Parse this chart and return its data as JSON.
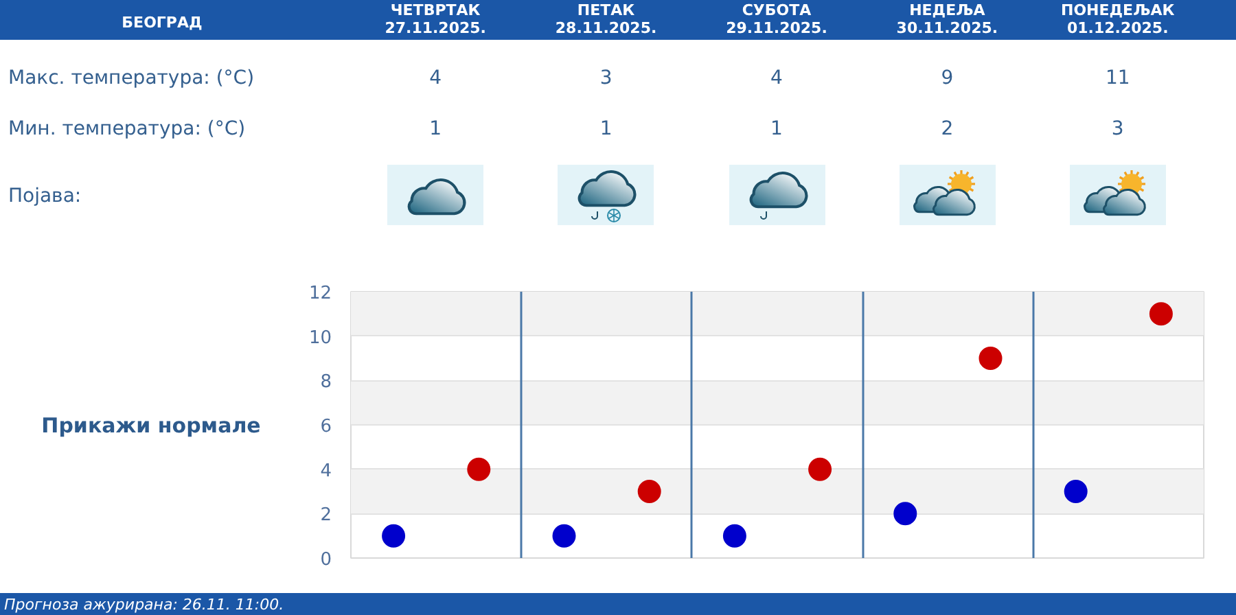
{
  "chart_data": {
    "type": "scatter",
    "title": "БЕОГРАД",
    "categories": [
      null,
      null,
      null,
      null,
      null
    ],
    "tick_labels": "y",
    "series": [
      {
        "color": "#cc0000",
        "values": [
          4,
          3,
          4,
          9,
          11
        ]
      },
      {
        "color": "#0000cc",
        "values": [
          1,
          1,
          1,
          2,
          3
        ]
      }
    ],
    "ylim": [
      0,
      12
    ],
    "yticks": [
      0,
      2,
      4,
      6,
      8,
      10,
      12
    ],
    "grid": true,
    "marker": "circle",
    "data_labels": true,
    "annotations": [
      "ЧЕТВРТАК\n27.11.2025.",
      "ПЕТАК\n28.11.2025.",
      "СУБОТА\n29.11.2025.",
      "НЕДЕЉА\n30.11.2025.",
      "ПОНЕДЕЉАК\n01.12.2025.",
      "Макс. температура: (°C)",
      "Мин. температура: (°C)",
      "Појава:",
      "Прикажи нормале",
      "Прогноза ажурирана: 26.11. 11:00."
    ]
  }
}
